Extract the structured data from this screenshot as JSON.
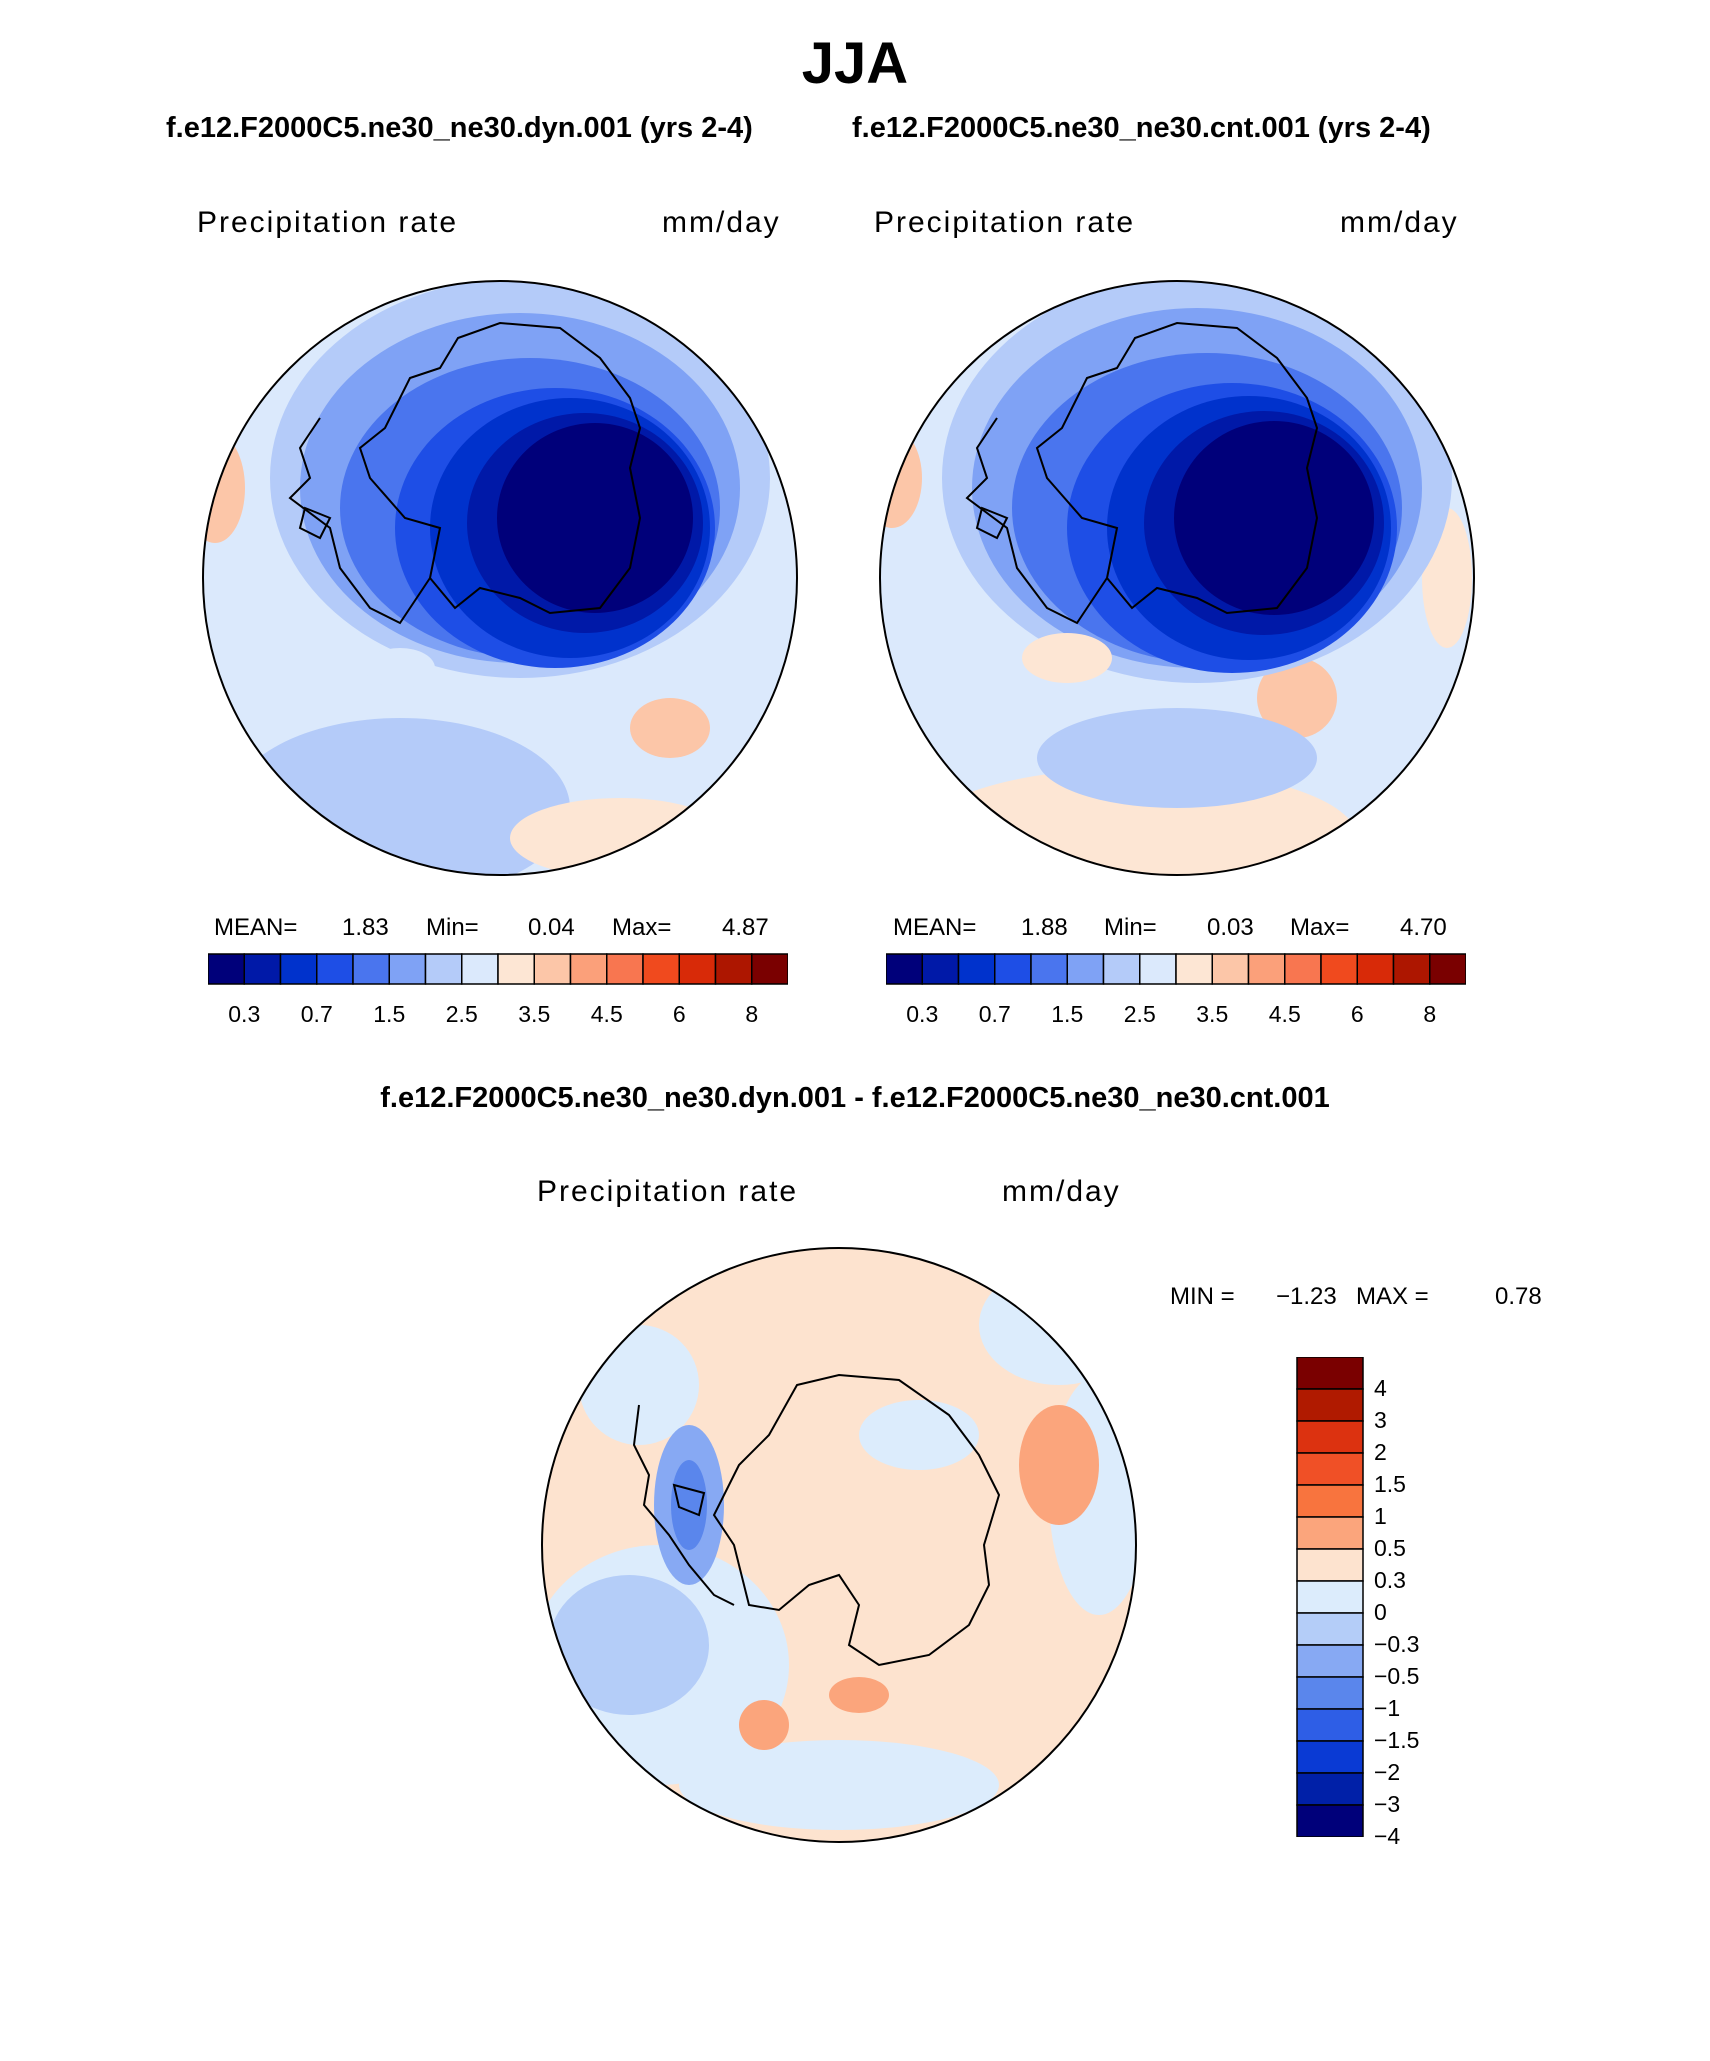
{
  "page": {
    "title": "JJA",
    "subtitle_left": "f.e12.F2000C5.ne30_ne30.dyn.001 (yrs 2-4)",
    "subtitle_right": "f.e12.F2000C5.ne30_ne30.cnt.001 (yrs 2-4)",
    "diff_title": "f.e12.F2000C5.ne30_ne30.dyn.001 - f.e12.F2000C5.ne30_ne30.cnt.001"
  },
  "chart_data": [
    {
      "type": "heatmap",
      "projection": "south polar stereographic",
      "case": "f.e12.F2000C5.ne30_ne30.dyn.001 (yrs 2-4)",
      "variable": "Precipitation rate",
      "units": "mm/day",
      "stats": {
        "mean_label": "MEAN=",
        "mean": "1.83",
        "min_label": "Min=",
        "min": "0.04",
        "max_label": "Max=",
        "max": "4.87"
      },
      "colorbar": {
        "ticks": [
          "0.3",
          "0.7",
          "1.5",
          "2.5",
          "3.5",
          "4.5",
          "6",
          "8"
        ],
        "colors": [
          "#00007a",
          "#0019a8",
          "#0032cc",
          "#1e4ee6",
          "#4a75ee",
          "#7fa2f5",
          "#b4cbf9",
          "#dbe9fc",
          "#fde6d4",
          "#fcc6a8",
          "#fba07a",
          "#f87650",
          "#f04a1e",
          "#d82a08",
          "#ad1600",
          "#7a0000"
        ]
      }
    },
    {
      "type": "heatmap",
      "projection": "south polar stereographic",
      "case": "f.e12.F2000C5.ne30_ne30.cnt.001 (yrs 2-4)",
      "variable": "Precipitation rate",
      "units": "mm/day",
      "stats": {
        "mean_label": "MEAN=",
        "mean": "1.88",
        "min_label": "Min=",
        "min": "0.03",
        "max_label": "Max=",
        "max": "4.70"
      },
      "colorbar": {
        "ticks": [
          "0.3",
          "0.7",
          "1.5",
          "2.5",
          "3.5",
          "4.5",
          "6",
          "8"
        ],
        "colors": [
          "#00007a",
          "#0019a8",
          "#0032cc",
          "#1e4ee6",
          "#4a75ee",
          "#7fa2f5",
          "#b4cbf9",
          "#dbe9fc",
          "#fde6d4",
          "#fcc6a8",
          "#fba07a",
          "#f87650",
          "#f04a1e",
          "#d82a08",
          "#ad1600",
          "#7a0000"
        ]
      }
    },
    {
      "type": "heatmap",
      "projection": "south polar stereographic",
      "case": "f.e12.F2000C5.ne30_ne30.dyn.001 - f.e12.F2000C5.ne30_ne30.cnt.001",
      "variable": "Precipitation rate",
      "units": "mm/day",
      "stats": {
        "min_label": "MIN =",
        "min": "−1.23",
        "max_label": "MAX =",
        "max": "0.78"
      },
      "colorbar": {
        "ticks": [
          "4",
          "3",
          "2",
          "1.5",
          "1",
          "0.5",
          "0.3",
          "0",
          "−0.3",
          "−0.5",
          "−1",
          "−1.5",
          "−2",
          "−3",
          "−4"
        ],
        "colors": [
          "#7a0000",
          "#b01a00",
          "#dc3210",
          "#f05026",
          "#f8743e",
          "#fba57c",
          "#fde3cf",
          "#dcecfc",
          "#b4cdf8",
          "#87a9f3",
          "#5a86ec",
          "#2e5ee6",
          "#0a3ad4",
          "#0020a8",
          "#00007a"
        ]
      }
    }
  ]
}
